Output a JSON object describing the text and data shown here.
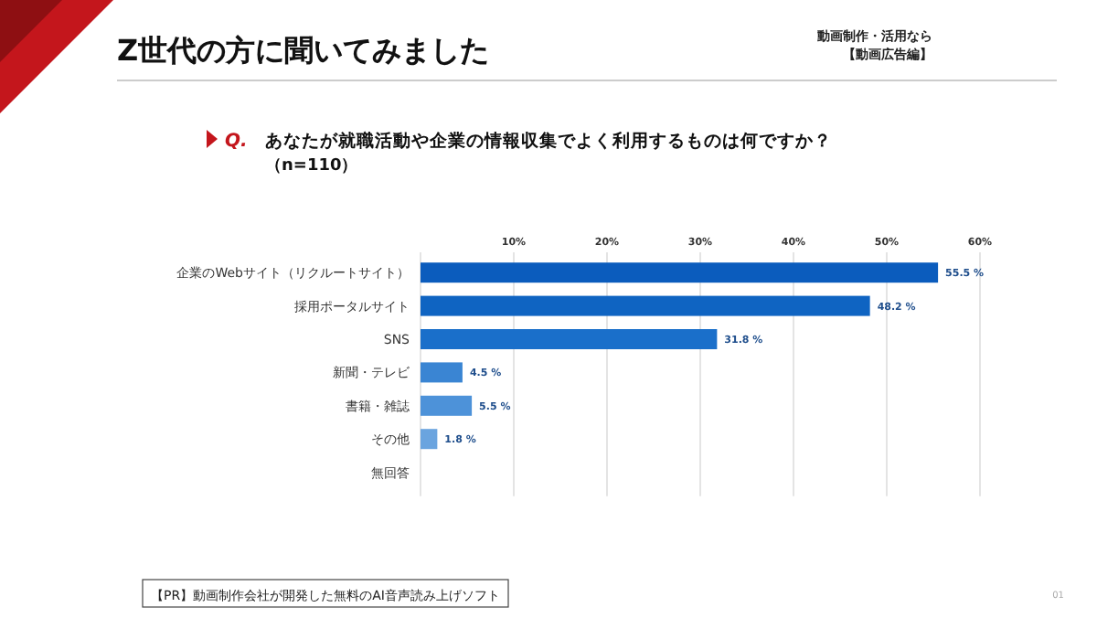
{
  "chart_data": {
    "type": "bar",
    "orientation": "horizontal",
    "title": "Z世代の方に聞いてみました",
    "subtitle": "あなたが就職活動や企業の情報収集でよく利用するものは何ですか？",
    "annotations": [
      "Q.",
      "（n=110）",
      "動画制作・活用なら",
      "【動画広告編】",
      "【PR】動画制作会社が開発した無料のAI音声読み上げソフト",
      "01"
    ],
    "categories": [
      "企業のWebサイト（リクルートサイト）",
      "採用ポータルサイト",
      "SNS",
      "新聞・テレビ",
      "書籍・雑誌",
      "その他",
      "無回答"
    ],
    "values": [
      55.5,
      48.2,
      31.8,
      4.5,
      5.5,
      1.8,
      null
    ],
    "value_labels": [
      "55.5 %",
      "48.2 %",
      "31.8 %",
      "4.5 %",
      "5.5 %",
      "1.8 %",
      null
    ],
    "colors": [
      "#0b5cbd",
      "#0f64c2",
      "#1a6fca",
      "#3a85d3",
      "#4d92d9",
      "#6aa4df",
      null
    ],
    "xlim": [
      0,
      60
    ],
    "xticks": [
      {
        "value": 10,
        "label": "10%"
      },
      {
        "value": 20,
        "label": "20%"
      },
      {
        "value": 30,
        "label": "30%"
      },
      {
        "value": 40,
        "label": "40%"
      },
      {
        "value": 50,
        "label": "50%"
      },
      {
        "value": 60,
        "label": "60%"
      }
    ],
    "grid": "x"
  }
}
